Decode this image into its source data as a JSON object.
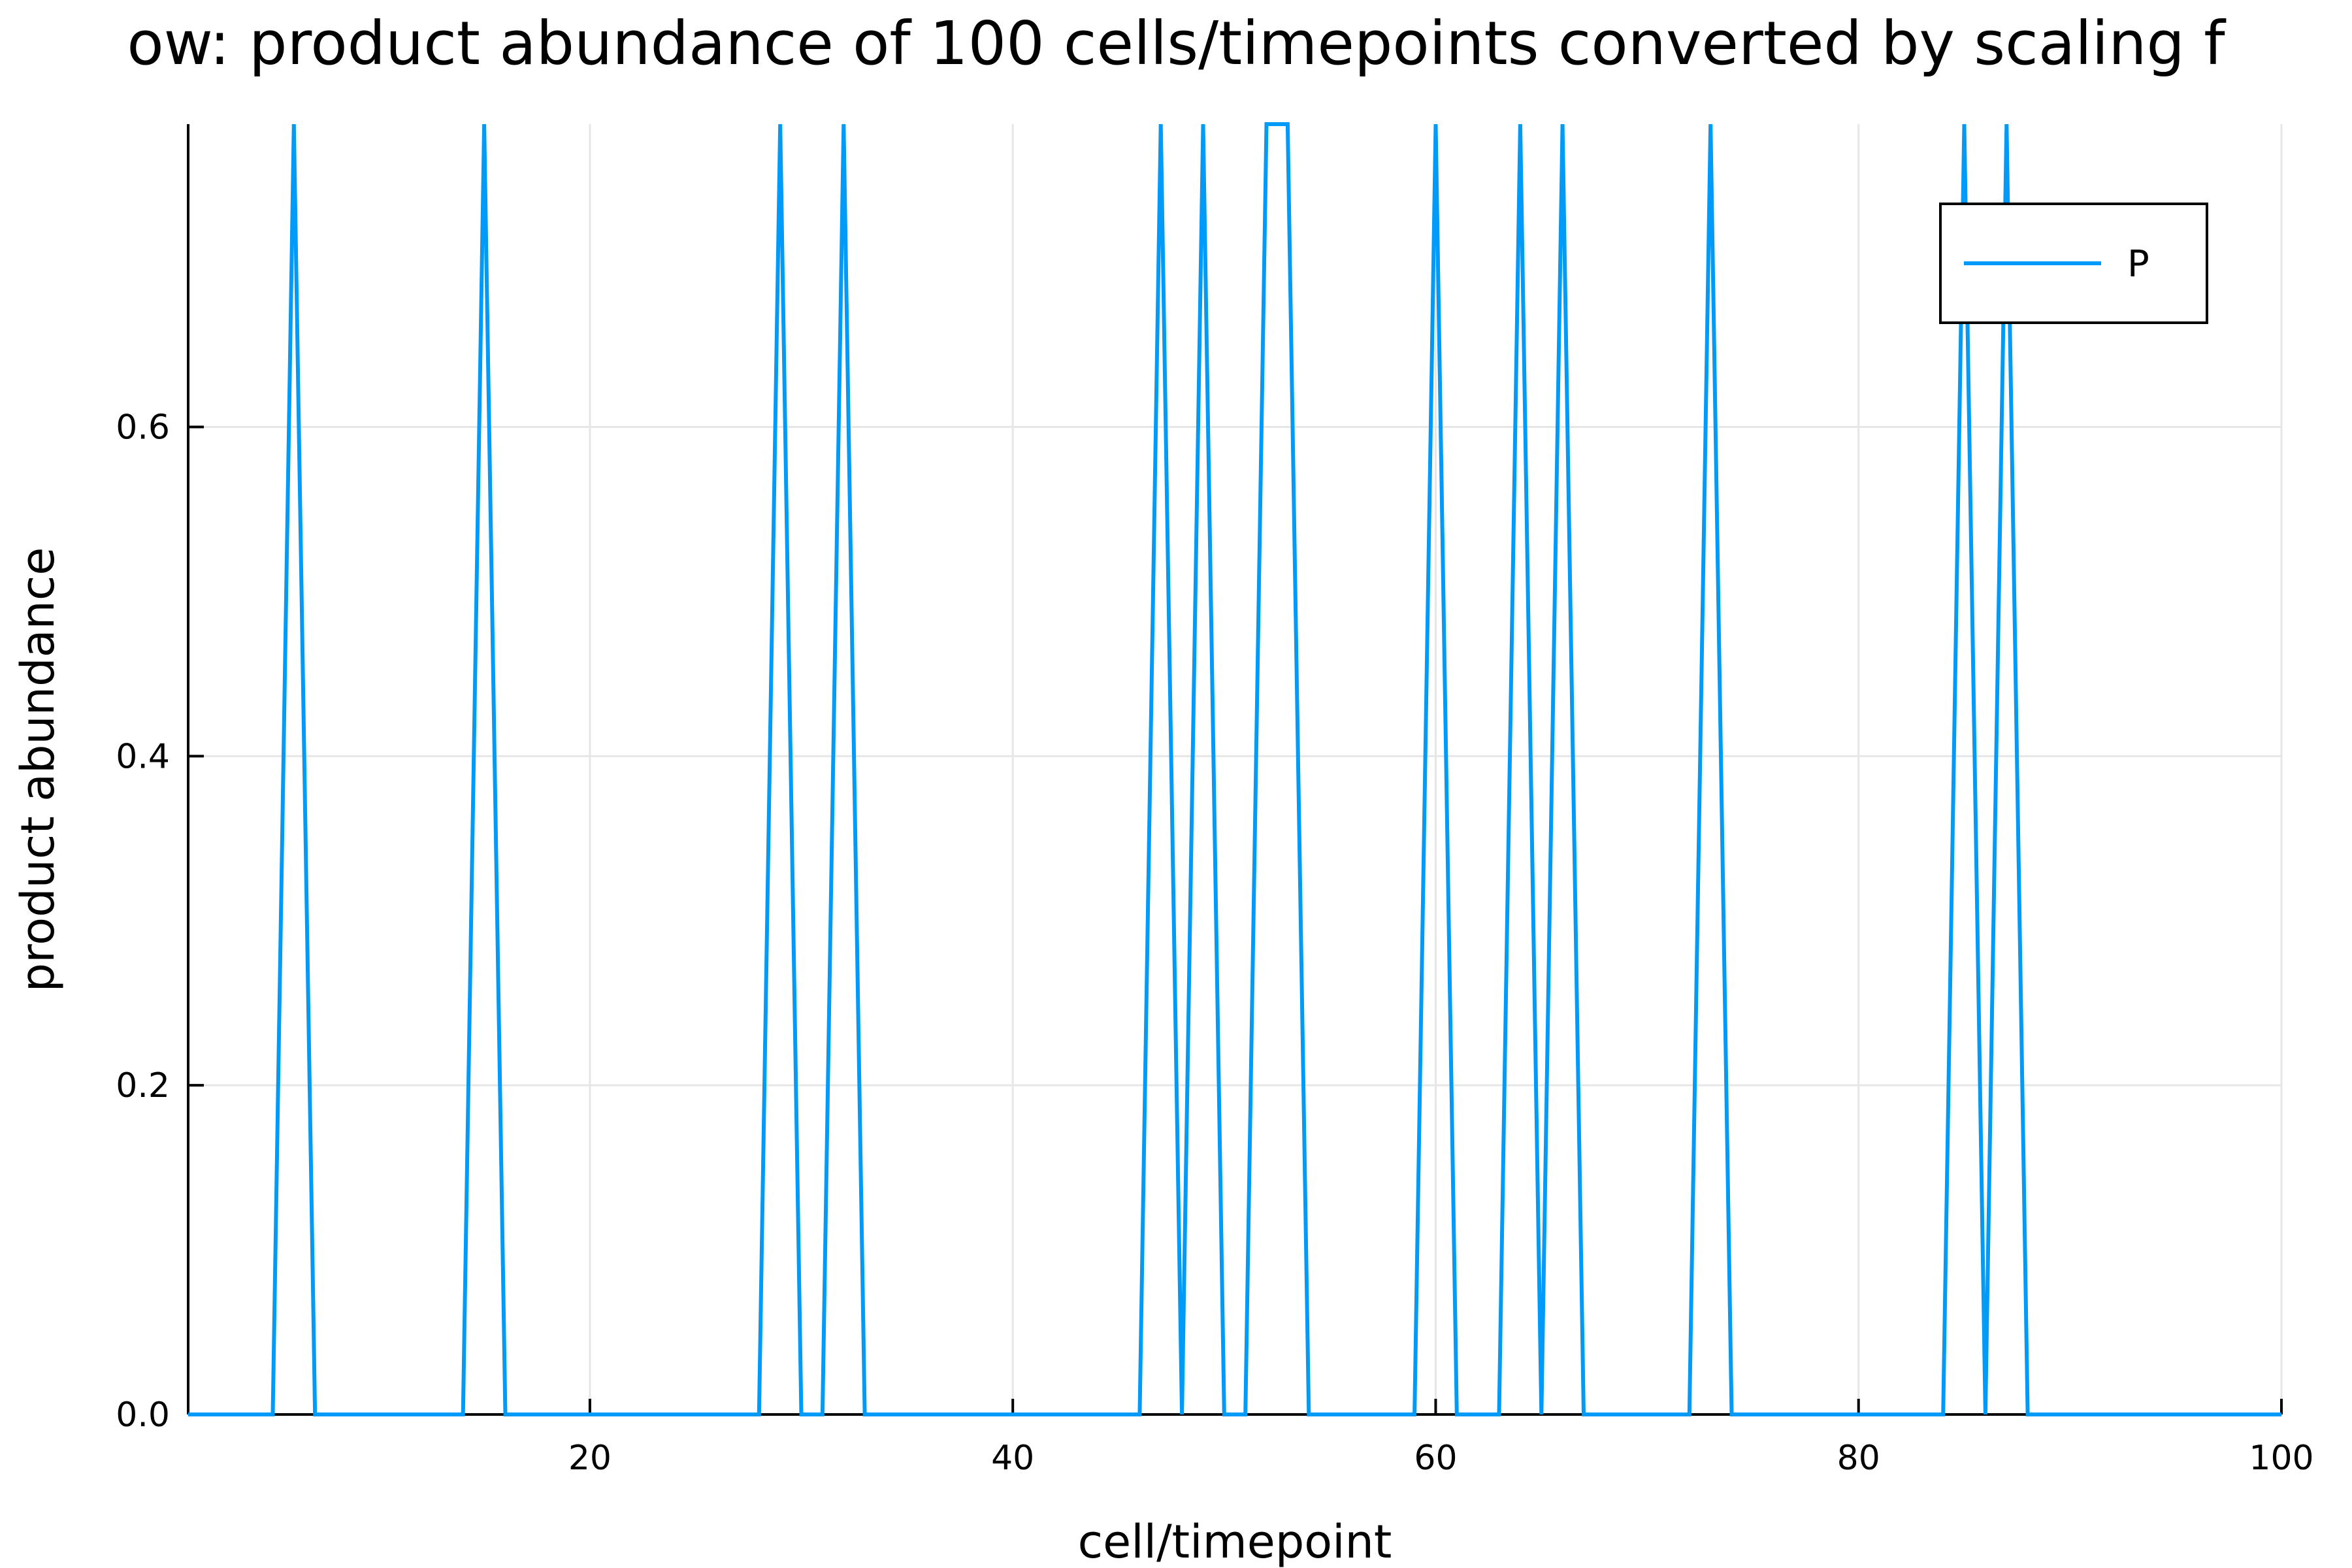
{
  "chart_data": {
    "type": "line",
    "title": "ow: product abundance of 100 cells/timepoints converted by scaling f",
    "xlabel": "cell/timepoint",
    "ylabel": "product abundance",
    "xlim": [
      1,
      100
    ],
    "ylim": [
      0,
      0.784
    ],
    "xticks": [
      20,
      40,
      60,
      80,
      100
    ],
    "xtick_labels": [
      "20",
      "40",
      "60",
      "80",
      "100"
    ],
    "yticks": [
      0.0,
      0.2,
      0.4,
      0.6
    ],
    "ytick_labels": [
      "0.0",
      "0.2",
      "0.4",
      "0.6"
    ],
    "grid": true,
    "legend_position": "top-right",
    "series": [
      {
        "name": "P",
        "color": "#009af9",
        "x": [
          1,
          2,
          3,
          4,
          5,
          6,
          7,
          8,
          9,
          10,
          11,
          12,
          13,
          14,
          15,
          16,
          17,
          18,
          19,
          20,
          21,
          22,
          23,
          24,
          25,
          26,
          27,
          28,
          29,
          30,
          31,
          32,
          33,
          34,
          35,
          36,
          37,
          38,
          39,
          40,
          41,
          42,
          43,
          44,
          45,
          46,
          47,
          48,
          49,
          50,
          51,
          52,
          53,
          54,
          55,
          56,
          57,
          58,
          59,
          60,
          61,
          62,
          63,
          64,
          65,
          66,
          67,
          68,
          69,
          70,
          71,
          72,
          73,
          74,
          75,
          76,
          77,
          78,
          79,
          80,
          81,
          82,
          83,
          84,
          85,
          86,
          87,
          88,
          89,
          90,
          91,
          92,
          93,
          94,
          95,
          96,
          97,
          98,
          99,
          100
        ],
        "values": [
          0,
          0,
          0,
          0,
          0,
          0.784,
          0,
          0,
          0,
          0,
          0,
          0,
          0,
          0,
          0.784,
          0,
          0,
          0,
          0,
          0,
          0,
          0,
          0,
          0,
          0,
          0,
          0,
          0,
          0.784,
          0,
          0,
          0.784,
          0,
          0,
          0,
          0,
          0,
          0,
          0,
          0,
          0,
          0,
          0,
          0,
          0,
          0,
          0.784,
          0,
          0.784,
          0,
          0,
          0.784,
          0.784,
          0,
          0,
          0,
          0,
          0,
          0,
          0.784,
          0,
          0,
          0,
          0.784,
          0,
          0.784,
          0,
          0,
          0,
          0,
          0,
          0,
          0.784,
          0,
          0,
          0,
          0,
          0,
          0,
          0,
          0,
          0,
          0,
          0,
          0.784,
          0,
          0.784,
          0,
          0,
          0,
          0,
          0,
          0,
          0,
          0,
          0,
          0,
          0,
          0,
          0
        ]
      }
    ]
  }
}
